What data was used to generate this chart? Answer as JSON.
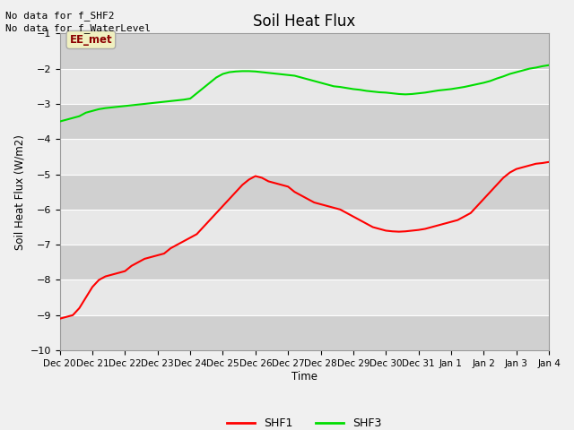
{
  "title": "Soil Heat Flux",
  "ylabel": "Soil Heat Flux (W/m2)",
  "xlabel": "Time",
  "ylim": [
    -10.0,
    -1.0
  ],
  "yticks": [
    -10.0,
    -9.0,
    -8.0,
    -7.0,
    -6.0,
    -5.0,
    -4.0,
    -3.0,
    -2.0,
    -1.0
  ],
  "annotation_lines": [
    "No data for f_SHF2",
    "No data for f_WaterLevel"
  ],
  "legend_label": "EE_met",
  "x_tick_labels": [
    "Dec 20",
    "Dec 21",
    "Dec 22",
    "Dec 23",
    "Dec 24",
    "Dec 25",
    "Dec 26",
    "Dec 27",
    "Dec 28",
    "Dec 29",
    "Dec 30",
    "Dec 31",
    "Jan 1",
    "Jan 2",
    "Jan 3",
    "Jan 4"
  ],
  "shf1_x": [
    0,
    0.2,
    0.4,
    0.6,
    0.8,
    1.0,
    1.2,
    1.4,
    1.6,
    1.8,
    2.0,
    2.2,
    2.4,
    2.6,
    2.8,
    3.0,
    3.2,
    3.4,
    3.6,
    3.8,
    4.0,
    4.2,
    4.4,
    4.6,
    4.8,
    5.0,
    5.2,
    5.4,
    5.6,
    5.8,
    6.0,
    6.2,
    6.4,
    6.6,
    6.8,
    7.0,
    7.2,
    7.4,
    7.6,
    7.8,
    8.0,
    8.2,
    8.4,
    8.6,
    8.8,
    9.0,
    9.2,
    9.4,
    9.6,
    9.8,
    10.0,
    10.2,
    10.4,
    10.6,
    10.8,
    11.0,
    11.2,
    11.4,
    11.6,
    11.8,
    12.0,
    12.2,
    12.4,
    12.6,
    12.8,
    13.0,
    13.2,
    13.4,
    13.6,
    13.8,
    14.0,
    14.2,
    14.4,
    14.6,
    14.8,
    15.0
  ],
  "shf1_y": [
    -9.1,
    -9.05,
    -9.0,
    -8.8,
    -8.5,
    -8.2,
    -8.0,
    -7.9,
    -7.85,
    -7.8,
    -7.75,
    -7.6,
    -7.5,
    -7.4,
    -7.35,
    -7.3,
    -7.25,
    -7.1,
    -7.0,
    -6.9,
    -6.8,
    -6.7,
    -6.5,
    -6.3,
    -6.1,
    -5.9,
    -5.7,
    -5.5,
    -5.3,
    -5.15,
    -5.05,
    -5.1,
    -5.2,
    -5.25,
    -5.3,
    -5.35,
    -5.5,
    -5.6,
    -5.7,
    -5.8,
    -5.85,
    -5.9,
    -5.95,
    -6.0,
    -6.1,
    -6.2,
    -6.3,
    -6.4,
    -6.5,
    -6.55,
    -6.6,
    -6.62,
    -6.63,
    -6.62,
    -6.6,
    -6.58,
    -6.55,
    -6.5,
    -6.45,
    -6.4,
    -6.35,
    -6.3,
    -6.2,
    -6.1,
    -5.9,
    -5.7,
    -5.5,
    -5.3,
    -5.1,
    -4.95,
    -4.85,
    -4.8,
    -4.75,
    -4.7,
    -4.68,
    -4.65
  ],
  "shf3_x": [
    0,
    0.2,
    0.4,
    0.6,
    0.8,
    1.0,
    1.2,
    1.4,
    1.6,
    1.8,
    2.0,
    2.2,
    2.4,
    2.6,
    2.8,
    3.0,
    3.2,
    3.4,
    3.6,
    3.8,
    4.0,
    4.2,
    4.4,
    4.6,
    4.8,
    5.0,
    5.2,
    5.4,
    5.6,
    5.8,
    6.0,
    6.2,
    6.4,
    6.6,
    6.8,
    7.0,
    7.2,
    7.4,
    7.6,
    7.8,
    8.0,
    8.2,
    8.4,
    8.6,
    8.8,
    9.0,
    9.2,
    9.4,
    9.6,
    9.8,
    10.0,
    10.2,
    10.4,
    10.6,
    10.8,
    11.0,
    11.2,
    11.4,
    11.6,
    11.8,
    12.0,
    12.2,
    12.4,
    12.6,
    12.8,
    13.0,
    13.2,
    13.4,
    13.6,
    13.8,
    14.0,
    14.2,
    14.4,
    14.6,
    14.8,
    15.0
  ],
  "shf3_y": [
    -3.5,
    -3.45,
    -3.4,
    -3.35,
    -3.25,
    -3.2,
    -3.15,
    -3.12,
    -3.1,
    -3.08,
    -3.06,
    -3.04,
    -3.02,
    -3.0,
    -2.98,
    -2.96,
    -2.94,
    -2.92,
    -2.9,
    -2.88,
    -2.85,
    -2.7,
    -2.55,
    -2.4,
    -2.25,
    -2.15,
    -2.1,
    -2.08,
    -2.07,
    -2.07,
    -2.08,
    -2.1,
    -2.12,
    -2.14,
    -2.16,
    -2.18,
    -2.2,
    -2.25,
    -2.3,
    -2.35,
    -2.4,
    -2.45,
    -2.5,
    -2.52,
    -2.55,
    -2.58,
    -2.6,
    -2.63,
    -2.65,
    -2.67,
    -2.68,
    -2.7,
    -2.72,
    -2.73,
    -2.72,
    -2.7,
    -2.68,
    -2.65,
    -2.62,
    -2.6,
    -2.58,
    -2.55,
    -2.52,
    -2.48,
    -2.44,
    -2.4,
    -2.35,
    -2.28,
    -2.22,
    -2.15,
    -2.1,
    -2.05,
    -2.0,
    -1.97,
    -1.93,
    -1.9
  ],
  "shf1_color": "#ff0000",
  "shf3_color": "#00dd00",
  "band_light": "#e8e8e8",
  "band_dark": "#d0d0d0",
  "fig_bg": "#f0f0f0",
  "grid_color": "#ffffff"
}
